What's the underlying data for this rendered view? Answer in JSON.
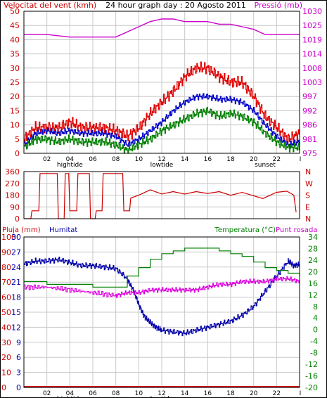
{
  "header": {
    "title_left": "Velocitat del vent (kmh)",
    "title_center": "24 hour graph day : 20 Agosto 2011",
    "title_right": "Pressió (mb)"
  },
  "colors": {
    "frame": "#000000",
    "grid": "#c8c8c8",
    "wind_avg": "#0000c8",
    "wind_gust": "#e00000",
    "wind_low": "#008000",
    "pressure": "#cc00cc",
    "direction": "#cc0000",
    "humidity": "#0000aa",
    "temperature": "#008000",
    "dewpoint": "#dd00dd",
    "rain": "#cc0000",
    "label_wind": "#cc0000",
    "label_pressure": "#cc00cc",
    "label_direction": "#cc0000",
    "label_humidity": "#0000aa",
    "label_temperature": "#008000",
    "label_dewpoint": "#cc00cc",
    "label_rain": "#cc0000"
  },
  "x_axis": {
    "hour_labels": [
      "02",
      "04",
      "06",
      "08",
      "10",
      "12",
      "14",
      "16",
      "18",
      "20",
      "22"
    ],
    "hour_values": [
      2,
      4,
      6,
      8,
      10,
      12,
      14,
      16,
      18,
      20,
      22
    ],
    "end_marker": "I",
    "hightide_label": "hightide",
    "lowtide_label": "lowtide",
    "sunset_label": "sunset",
    "hightide_x": 4,
    "lowtide_x": 12,
    "sunset_x": 21
  },
  "chart_data": [
    {
      "type": "line",
      "title": "24 hour graph day : 20 Agosto 2011",
      "left_axis": {
        "label": "Velocitat del vent (kmh)",
        "ticks": [
          0,
          5,
          10,
          15,
          20,
          25,
          30,
          35,
          40,
          45,
          50
        ],
        "range": [
          0,
          50
        ]
      },
      "right_axis": {
        "label": "Pressió (mb)",
        "ticks": [
          975,
          981,
          986,
          992,
          997,
          1003,
          1008,
          1014,
          1019,
          1025,
          1030
        ],
        "range": [
          975,
          1030
        ]
      },
      "x_range": [
        0,
        24
      ],
      "series": [
        {
          "key": "pressure",
          "axis": "right",
          "x": [
            0,
            2,
            4,
            6,
            8,
            9,
            10,
            11,
            12,
            13,
            14,
            15,
            16,
            17,
            18,
            19,
            20,
            21,
            22,
            23,
            24
          ],
          "values": [
            1021,
            1021,
            1020,
            1020,
            1020,
            1022,
            1024,
            1026,
            1027,
            1027,
            1026,
            1026,
            1026,
            1025,
            1025,
            1024,
            1023,
            1021,
            1021,
            1021,
            1021
          ]
        },
        {
          "key": "gust",
          "axis": "left",
          "x": [
            0,
            1,
            2,
            3,
            4,
            5,
            6,
            7,
            8,
            9,
            10,
            11,
            12,
            13,
            14,
            15,
            16,
            17,
            18,
            19,
            20,
            21,
            22,
            23,
            24
          ],
          "values": [
            5,
            9,
            9,
            9,
            11,
            9,
            9,
            9,
            8,
            6,
            9,
            14,
            18,
            22,
            27,
            30,
            30,
            27,
            25,
            25,
            20,
            13,
            9,
            5,
            7
          ]
        },
        {
          "key": "average",
          "axis": "left",
          "x": [
            0,
            1,
            2,
            3,
            4,
            5,
            6,
            7,
            8,
            9,
            10,
            11,
            12,
            13,
            14,
            15,
            16,
            17,
            18,
            19,
            20,
            21,
            22,
            23,
            24
          ],
          "values": [
            3,
            7,
            8,
            7,
            8,
            7,
            7,
            7,
            6,
            3,
            5,
            8,
            11,
            15,
            18,
            20,
            20,
            19,
            19,
            18,
            15,
            10,
            6,
            3,
            4
          ]
        },
        {
          "key": "low",
          "axis": "left",
          "x": [
            0,
            1,
            2,
            3,
            4,
            5,
            6,
            7,
            8,
            9,
            10,
            11,
            12,
            13,
            14,
            15,
            16,
            17,
            18,
            19,
            20,
            21,
            22,
            23,
            24
          ],
          "values": [
            2,
            5,
            5,
            4,
            5,
            4,
            4,
            4,
            3,
            1,
            3,
            5,
            8,
            10,
            12,
            14,
            15,
            13,
            14,
            13,
            11,
            7,
            4,
            2,
            2
          ]
        }
      ]
    },
    {
      "type": "line",
      "left_axis": {
        "ticks": [
          0,
          90,
          180,
          270,
          360
        ],
        "range": [
          0,
          360
        ]
      },
      "right_axis": {
        "ticks": [
          "N",
          "W",
          "S",
          "E",
          "N"
        ]
      },
      "x_range": [
        0,
        24
      ],
      "series": [
        {
          "key": "direction",
          "x": [
            0,
            0.6,
            0.7,
            1.3,
            1.4,
            2.9,
            3.0,
            3.5,
            3.6,
            3.9,
            4.0,
            4.6,
            4.7,
            5.7,
            5.8,
            6.2,
            6.3,
            6.8,
            6.9,
            8.6,
            8.7,
            9.2,
            9.3,
            10,
            11,
            12,
            13,
            14,
            15,
            16,
            17,
            18,
            19,
            20,
            20.8,
            21.2,
            22,
            22.9,
            23.5,
            23.7
          ],
          "values": [
            0,
            0,
            60,
            60,
            345,
            345,
            0,
            0,
            345,
            345,
            60,
            60,
            345,
            345,
            0,
            0,
            60,
            60,
            345,
            345,
            60,
            60,
            165,
            190,
            210,
            200,
            195,
            200,
            195,
            205,
            195,
            190,
            190,
            185,
            150,
            180,
            210,
            210,
            180,
            50
          ]
        }
      ]
    },
    {
      "type": "line",
      "left_axis_rain": {
        "label": "Pluja (mm)",
        "ticks": [
          0,
          10,
          20,
          30,
          40,
          50,
          60,
          70,
          80,
          90,
          100
        ],
        "range": [
          0,
          100
        ]
      },
      "left_axis_humidity": {
        "label": "Humitat",
        "ticks": [
          0,
          3,
          6,
          9,
          12,
          15,
          18,
          21,
          24,
          27,
          30
        ],
        "range": [
          0,
          30
        ]
      },
      "right_axis": {
        "label": "Temperatura (°C)",
        "ticks": [
          -20,
          -16,
          -12,
          -8,
          -4,
          0,
          4,
          8,
          12,
          16,
          20,
          24,
          28,
          34
        ],
        "range": [
          -20,
          34
        ]
      },
      "right_label_extra": "Punt rosada",
      "x_range": [
        0,
        24
      ],
      "series": [
        {
          "key": "humidity",
          "axis": "rain",
          "x": [
            0,
            1,
            2,
            3,
            4,
            5,
            6,
            7,
            8,
            9,
            9.5,
            10,
            10.5,
            11,
            11.5,
            12,
            13,
            14,
            15,
            16,
            17,
            18,
            19,
            20,
            21,
            22,
            23,
            23.5,
            24
          ],
          "values": [
            82,
            84,
            84,
            85,
            83,
            81,
            81,
            80,
            79,
            72,
            65,
            55,
            47,
            43,
            40,
            38,
            37,
            36,
            38,
            40,
            42,
            44,
            48,
            54,
            64,
            74,
            84,
            81,
            82
          ]
        },
        {
          "key": "temperature",
          "axis": "temp",
          "x": [
            0,
            2,
            4,
            6,
            8,
            9,
            10,
            11,
            12,
            13,
            14,
            15,
            16,
            17,
            18,
            19,
            20,
            21,
            22,
            23,
            24
          ],
          "values": [
            18,
            17,
            17,
            16,
            16,
            20,
            23,
            26,
            28,
            29,
            30,
            30,
            30,
            29,
            28,
            27,
            25,
            23,
            22,
            21,
            20
          ]
        },
        {
          "key": "dewpoint",
          "axis": "temp",
          "x": [
            0,
            2,
            4,
            6,
            8,
            9,
            10,
            11,
            12,
            13,
            14,
            15,
            16,
            17,
            18,
            19,
            20,
            21,
            22,
            23,
            24
          ],
          "values": [
            16,
            16,
            15,
            14,
            13,
            14,
            14,
            15,
            15,
            15,
            15,
            15,
            16,
            17,
            17,
            18,
            18,
            18,
            19,
            19,
            18
          ]
        },
        {
          "key": "rain",
          "axis": "rain",
          "x": [
            0,
            24
          ],
          "values": [
            0,
            0
          ]
        }
      ],
      "labels": {
        "rain": "Pluja (mm)",
        "humidity": "Humitat",
        "temperature": "Temperatura (°C)",
        "dewpoint": "Punt rosada"
      }
    }
  ]
}
